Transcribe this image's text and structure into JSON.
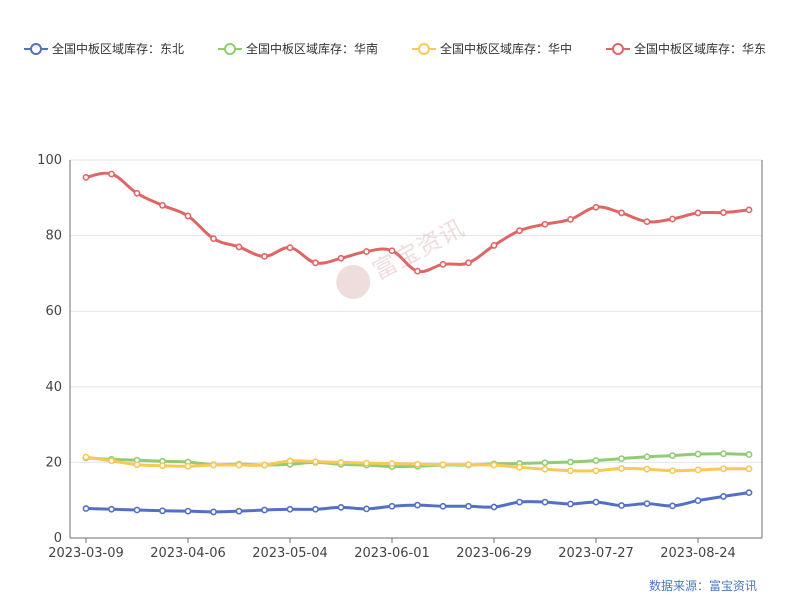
{
  "chart_data": {
    "type": "line",
    "legend_position": "top",
    "grid": true,
    "ylim": [
      0,
      100
    ],
    "yticks": [
      0,
      20,
      40,
      60,
      80,
      100
    ],
    "xticks": [
      "2023-03-09",
      "2023-04-06",
      "2023-05-04",
      "2023-06-01",
      "2023-06-29",
      "2023-07-27",
      "2023-08-24"
    ],
    "x": [
      "2023-03-09",
      "2023-03-16",
      "2023-03-23",
      "2023-03-30",
      "2023-04-06",
      "2023-04-13",
      "2023-04-20",
      "2023-04-27",
      "2023-05-04",
      "2023-05-11",
      "2023-05-18",
      "2023-05-25",
      "2023-06-01",
      "2023-06-08",
      "2023-06-15",
      "2023-06-22",
      "2023-06-29",
      "2023-07-06",
      "2023-07-13",
      "2023-07-20",
      "2023-07-27",
      "2023-08-03",
      "2023-08-10",
      "2023-08-17",
      "2023-08-24",
      "2023-08-31",
      "2023-09-07"
    ],
    "series": [
      {
        "name": "全国中板区域库存：东北",
        "color": "#5470c6",
        "values": [
          7.8,
          7.6,
          7.4,
          7.2,
          7.1,
          6.9,
          7.1,
          7.4,
          7.6,
          7.6,
          8.1,
          7.7,
          8.4,
          8.7,
          8.4,
          8.4,
          8.2,
          9.5,
          9.5,
          9.0,
          9.5,
          8.6,
          9.1,
          8.5,
          9.9,
          11.0,
          12.0
        ]
      },
      {
        "name": "全国中板区域库存：华南",
        "color": "#91cc75",
        "values": [
          21.2,
          20.8,
          20.6,
          20.3,
          20.1,
          19.4,
          19.5,
          19.3,
          19.5,
          20.0,
          19.5,
          19.3,
          18.9,
          19.0,
          19.3,
          19.3,
          19.6,
          19.7,
          19.9,
          20.1,
          20.5,
          21.0,
          21.5,
          21.8,
          22.2,
          22.3,
          22.1
        ]
      },
      {
        "name": "全国中板区域库存：华中",
        "color": "#fac858",
        "values": [
          21.4,
          20.4,
          19.4,
          19.1,
          19.0,
          19.3,
          19.3,
          19.3,
          20.4,
          20.2,
          20.0,
          19.8,
          19.7,
          19.5,
          19.4,
          19.4,
          19.3,
          18.7,
          18.2,
          17.8,
          17.8,
          18.4,
          18.2,
          17.8,
          18.0,
          18.3,
          18.3
        ]
      },
      {
        "name": "全国中板区域库存：华东",
        "color": "#e06666",
        "values": [
          95.4,
          96.3,
          91.2,
          88.0,
          85.2,
          79.2,
          77.0,
          74.5,
          76.8,
          72.8,
          74.0,
          75.8,
          76.0,
          70.6,
          72.4,
          72.8,
          77.4,
          81.3,
          83.0,
          84.3,
          87.5,
          86.0,
          83.7,
          84.4,
          86.0,
          86.1,
          86.8
        ]
      }
    ]
  },
  "source_label": "数据来源：富宝资讯",
  "watermark_label": "富宝资讯"
}
